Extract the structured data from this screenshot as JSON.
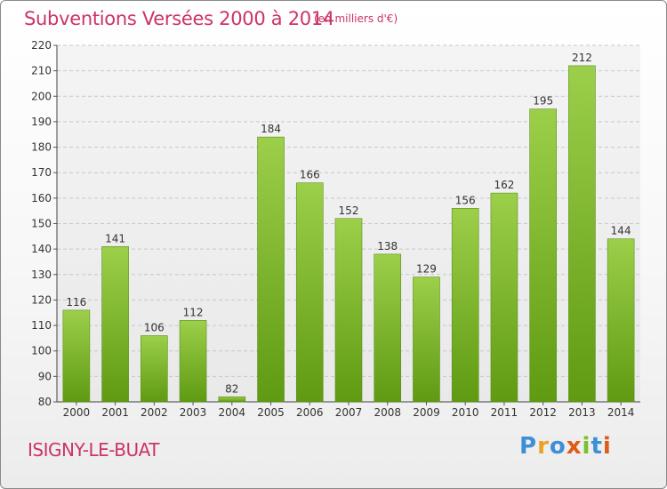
{
  "header": {
    "title": "Subventions Versées 2000 à 2014",
    "subtitle": "(en milliers d'€)"
  },
  "footer": {
    "place": "ISIGNY-LE-BUAT",
    "logo_letters": [
      "P",
      "r",
      "o",
      "x",
      "i",
      "t",
      "i"
    ],
    "logo_colors": [
      "#3d8fd6",
      "#f0a020",
      "#3d8fd6",
      "#e05a1a",
      "#7cbf2a",
      "#3d8fd6",
      "#e05a1a"
    ]
  },
  "chart_data": {
    "type": "bar",
    "title": "Subventions Versées 2000 à 2014",
    "subtitle": "(en milliers d'€)",
    "categories": [
      "2000",
      "2001",
      "2002",
      "2003",
      "2004",
      "2005",
      "2006",
      "2007",
      "2008",
      "2009",
      "2010",
      "2011",
      "2012",
      "2013",
      "2014"
    ],
    "values": [
      116,
      141,
      106,
      112,
      82,
      184,
      166,
      152,
      138,
      129,
      156,
      162,
      195,
      212,
      144
    ],
    "ylim": [
      80,
      220
    ],
    "yticks": [
      80,
      90,
      100,
      110,
      120,
      130,
      140,
      150,
      160,
      170,
      180,
      190,
      200,
      210,
      220
    ],
    "grid": true,
    "bar_color_top": "#9ccf4a",
    "bar_color_bottom": "#5f9a12"
  }
}
